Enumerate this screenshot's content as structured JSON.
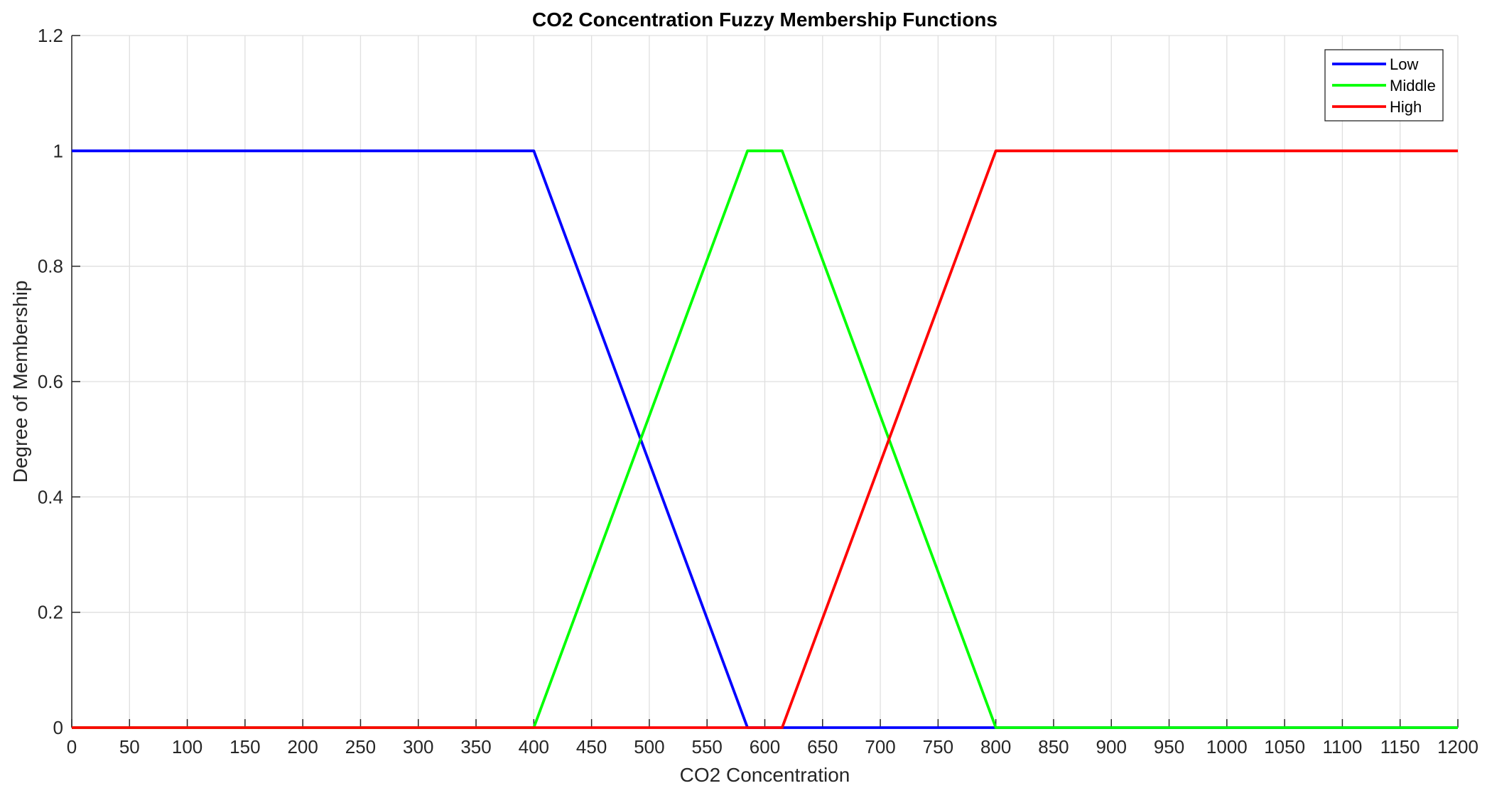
{
  "chart_data": {
    "type": "line",
    "title": "CO2 Concentration Fuzzy Membership Functions",
    "xlabel": "CO2 Concentration",
    "ylabel": "Degree of Membership",
    "xlim": [
      0,
      1200
    ],
    "ylim": [
      0,
      1.2
    ],
    "xticks": [
      0,
      50,
      100,
      150,
      200,
      250,
      300,
      350,
      400,
      450,
      500,
      550,
      600,
      650,
      700,
      750,
      800,
      850,
      900,
      950,
      1000,
      1050,
      1100,
      1150,
      1200
    ],
    "yticks": [
      0,
      0.2,
      0.4,
      0.6,
      0.8,
      1,
      1.2
    ],
    "ytick_labels": [
      "0",
      "0.2",
      "0.4",
      "0.6",
      "0.8",
      "1",
      "1.2"
    ],
    "grid": true,
    "legend_position": "top-right",
    "series": [
      {
        "name": "Low",
        "color": "#0000ff",
        "x": [
          0,
          400,
          585,
          1200
        ],
        "y": [
          1,
          1,
          0,
          0
        ]
      },
      {
        "name": "Middle",
        "color": "#00ff00",
        "x": [
          0,
          400,
          585,
          615,
          800,
          1200
        ],
        "y": [
          0,
          0,
          1,
          1,
          0,
          0
        ]
      },
      {
        "name": "High",
        "color": "#ff0000",
        "x": [
          0,
          615,
          800,
          1200
        ],
        "y": [
          0,
          0,
          1,
          1
        ]
      }
    ]
  }
}
